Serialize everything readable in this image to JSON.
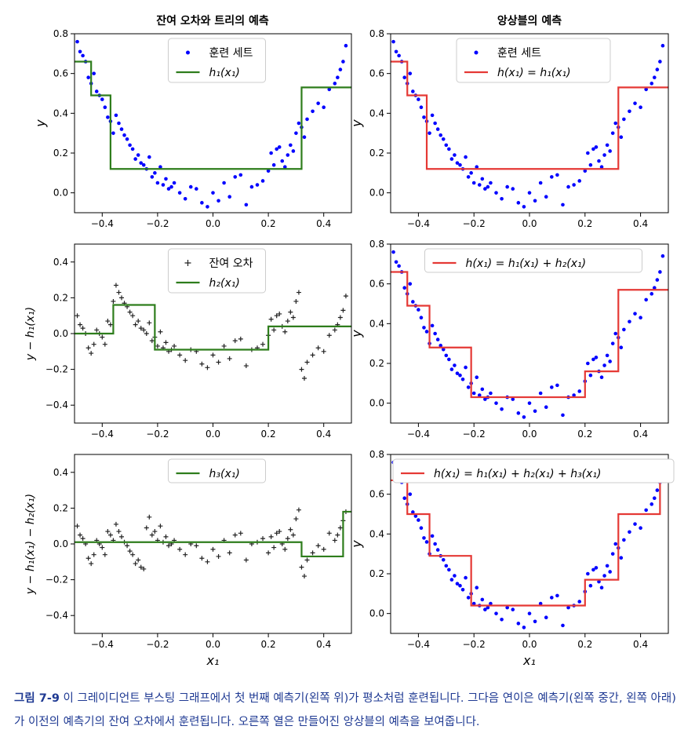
{
  "figure": {
    "col_titles": [
      "잔여 오차와 트리의 예측",
      "앙상블의 예측"
    ]
  },
  "caption": {
    "label": "그림 7-9",
    "text": "이 그레이디언트 부스팅 그래프에서 첫 번째 예측기(왼쪽 위)가 평소처럼 훈련됩니다. 그다음 연이은 예측기(왼쪽 중간, 왼쪽 아래)가 이전의 예측기의 잔여 오차에서 훈련됩니다. 오른쪽 열은 만들어진 앙상블의 예측을 보여줍니다."
  },
  "chart_data": [
    {
      "type": "scatter",
      "panel": "left-top",
      "title": "잔여 오차와 트리의 예측",
      "xlabel": "",
      "ylabel": "y",
      "xlim": [
        -0.5,
        0.5
      ],
      "ylim": [
        -0.1,
        0.8
      ],
      "xticks": [
        "−0.4",
        "−0.2",
        "0.0",
        "0.2",
        "0.4"
      ],
      "yticks": [
        "0.0",
        "0.2",
        "0.4",
        "0.6",
        "0.8"
      ],
      "legend": [
        "훈련 세트",
        "h₁(x₁)"
      ],
      "legend_position": "upper-center",
      "marker": "dot",
      "marker_color": "#0000ff",
      "line_color": "#2e7d1c",
      "points_x": [
        -0.49,
        -0.48,
        -0.47,
        -0.46,
        -0.45,
        -0.44,
        -0.43,
        -0.42,
        -0.41,
        -0.4,
        -0.39,
        -0.38,
        -0.37,
        -0.36,
        -0.35,
        -0.34,
        -0.33,
        -0.32,
        -0.31,
        -0.3,
        -0.29,
        -0.28,
        -0.27,
        -0.26,
        -0.25,
        -0.24,
        -0.23,
        -0.22,
        -0.21,
        -0.2,
        -0.19,
        -0.18,
        -0.17,
        -0.16,
        -0.15,
        -0.14,
        -0.12,
        -0.1,
        -0.08,
        -0.06,
        -0.04,
        -0.02,
        0.0,
        0.02,
        0.04,
        0.06,
        0.08,
        0.1,
        0.12,
        0.14,
        0.16,
        0.18,
        0.2,
        0.21,
        0.22,
        0.23,
        0.24,
        0.25,
        0.26,
        0.27,
        0.28,
        0.29,
        0.3,
        0.31,
        0.32,
        0.33,
        0.34,
        0.36,
        0.38,
        0.4,
        0.42,
        0.44,
        0.45,
        0.46,
        0.47,
        0.48
      ],
      "points_y": [
        0.76,
        0.71,
        0.69,
        0.66,
        0.58,
        0.55,
        0.6,
        0.51,
        0.49,
        0.47,
        0.43,
        0.38,
        0.36,
        0.3,
        0.39,
        0.35,
        0.32,
        0.29,
        0.27,
        0.24,
        0.22,
        0.17,
        0.19,
        0.15,
        0.14,
        0.12,
        0.18,
        0.08,
        0.1,
        0.05,
        0.13,
        0.04,
        0.07,
        0.02,
        0.03,
        0.05,
        0.0,
        -0.03,
        0.03,
        0.02,
        -0.05,
        -0.07,
        0.0,
        -0.04,
        0.05,
        -0.02,
        0.08,
        0.09,
        -0.06,
        0.03,
        0.04,
        0.06,
        0.11,
        0.2,
        0.14,
        0.22,
        0.23,
        0.16,
        0.13,
        0.19,
        0.24,
        0.21,
        0.3,
        0.35,
        0.33,
        0.28,
        0.37,
        0.41,
        0.45,
        0.43,
        0.52,
        0.55,
        0.58,
        0.62,
        0.66,
        0.74
      ],
      "steps": [
        [
          -0.5,
          0.66
        ],
        [
          -0.44,
          0.49
        ],
        [
          -0.37,
          0.12
        ],
        [
          0.32,
          0.53
        ],
        [
          0.5,
          0.53
        ]
      ]
    },
    {
      "type": "scatter",
      "panel": "left-middle",
      "title": "",
      "xlabel": "",
      "ylabel": "y − h₁(x₁)",
      "xlim": [
        -0.5,
        0.5
      ],
      "ylim": [
        -0.5,
        0.5
      ],
      "xticks": [
        "−0.4",
        "−0.2",
        "0.0",
        "0.2",
        "0.4"
      ],
      "yticks": [
        "−0.4",
        "−0.2",
        "0.0",
        "0.2",
        "0.4"
      ],
      "legend": [
        "잔여 오차",
        "h₂(x₁)"
      ],
      "legend_position": "upper-center",
      "marker": "plus",
      "marker_color": "#222222",
      "line_color": "#2e7d1c",
      "points_x": [
        -0.49,
        -0.48,
        -0.47,
        -0.46,
        -0.45,
        -0.44,
        -0.43,
        -0.42,
        -0.41,
        -0.4,
        -0.39,
        -0.38,
        -0.37,
        -0.36,
        -0.35,
        -0.34,
        -0.33,
        -0.32,
        -0.31,
        -0.3,
        -0.29,
        -0.28,
        -0.27,
        -0.26,
        -0.25,
        -0.24,
        -0.23,
        -0.22,
        -0.21,
        -0.2,
        -0.19,
        -0.18,
        -0.17,
        -0.16,
        -0.15,
        -0.14,
        -0.12,
        -0.1,
        -0.08,
        -0.06,
        -0.04,
        -0.02,
        0.0,
        0.02,
        0.04,
        0.06,
        0.08,
        0.1,
        0.12,
        0.14,
        0.16,
        0.18,
        0.2,
        0.21,
        0.22,
        0.23,
        0.24,
        0.25,
        0.26,
        0.27,
        0.28,
        0.29,
        0.3,
        0.31,
        0.32,
        0.33,
        0.34,
        0.36,
        0.38,
        0.4,
        0.42,
        0.44,
        0.45,
        0.46,
        0.47,
        0.48
      ],
      "points_y": [
        0.1,
        0.05,
        0.03,
        0.0,
        -0.08,
        -0.11,
        -0.06,
        0.02,
        0.0,
        -0.02,
        -0.06,
        0.07,
        0.05,
        0.18,
        0.27,
        0.23,
        0.2,
        0.17,
        0.15,
        0.12,
        0.1,
        0.05,
        0.07,
        0.03,
        0.02,
        0.0,
        0.06,
        -0.04,
        -0.02,
        -0.07,
        0.01,
        -0.08,
        -0.05,
        -0.1,
        -0.09,
        -0.07,
        -0.12,
        -0.15,
        -0.09,
        -0.1,
        -0.17,
        -0.19,
        -0.12,
        -0.16,
        -0.07,
        -0.14,
        -0.04,
        -0.03,
        -0.18,
        -0.09,
        -0.08,
        -0.06,
        -0.01,
        0.08,
        0.02,
        0.1,
        0.11,
        0.04,
        0.01,
        0.07,
        0.12,
        0.09,
        0.18,
        0.23,
        -0.2,
        -0.25,
        -0.16,
        -0.12,
        -0.08,
        -0.1,
        -0.01,
        0.02,
        0.05,
        0.09,
        0.13,
        0.21
      ],
      "steps": [
        [
          -0.5,
          0.0
        ],
        [
          -0.36,
          0.16
        ],
        [
          -0.21,
          -0.09
        ],
        [
          0.2,
          0.04
        ],
        [
          0.5,
          0.04
        ]
      ]
    },
    {
      "type": "scatter",
      "panel": "left-bottom",
      "title": "",
      "xlabel": "x₁",
      "ylabel": "y − h₁(x₁) − h₂(x₁)",
      "xlim": [
        -0.5,
        0.5
      ],
      "ylim": [
        -0.5,
        0.5
      ],
      "xticks": [
        "−0.4",
        "−0.2",
        "0.0",
        "0.2",
        "0.4"
      ],
      "yticks": [
        "−0.4",
        "−0.2",
        "0.0",
        "0.2",
        "0.4"
      ],
      "legend": [
        "h₃(x₁)"
      ],
      "legend_position": "upper-center",
      "marker": "plus",
      "marker_color": "#222222",
      "line_color": "#2e7d1c",
      "points_x": [
        -0.49,
        -0.48,
        -0.47,
        -0.46,
        -0.45,
        -0.44,
        -0.43,
        -0.42,
        -0.41,
        -0.4,
        -0.39,
        -0.38,
        -0.37,
        -0.36,
        -0.35,
        -0.34,
        -0.33,
        -0.32,
        -0.31,
        -0.3,
        -0.29,
        -0.28,
        -0.27,
        -0.26,
        -0.25,
        -0.24,
        -0.23,
        -0.22,
        -0.21,
        -0.2,
        -0.19,
        -0.18,
        -0.17,
        -0.16,
        -0.15,
        -0.14,
        -0.12,
        -0.1,
        -0.08,
        -0.06,
        -0.04,
        -0.02,
        0.0,
        0.02,
        0.04,
        0.06,
        0.08,
        0.1,
        0.12,
        0.14,
        0.16,
        0.18,
        0.2,
        0.21,
        0.22,
        0.23,
        0.24,
        0.25,
        0.26,
        0.27,
        0.28,
        0.29,
        0.3,
        0.31,
        0.32,
        0.33,
        0.34,
        0.36,
        0.38,
        0.4,
        0.42,
        0.44,
        0.45,
        0.46,
        0.47,
        0.48
      ],
      "points_y": [
        0.1,
        0.05,
        0.03,
        0.0,
        -0.08,
        -0.11,
        -0.06,
        0.02,
        0.0,
        -0.02,
        -0.06,
        0.07,
        0.05,
        0.02,
        0.11,
        0.07,
        0.04,
        0.01,
        -0.01,
        -0.04,
        -0.06,
        -0.11,
        -0.09,
        -0.13,
        -0.14,
        0.09,
        0.15,
        0.05,
        0.07,
        0.02,
        0.1,
        0.01,
        0.04,
        -0.01,
        0.0,
        0.02,
        -0.03,
        -0.06,
        0.0,
        -0.01,
        -0.08,
        -0.1,
        -0.03,
        -0.07,
        0.02,
        -0.05,
        0.05,
        0.06,
        -0.09,
        0.0,
        0.01,
        0.03,
        -0.05,
        0.04,
        -0.02,
        0.06,
        0.07,
        0.0,
        -0.03,
        0.03,
        0.08,
        0.05,
        0.14,
        0.19,
        -0.13,
        -0.18,
        -0.09,
        -0.05,
        -0.01,
        -0.03,
        0.06,
        0.02,
        0.05,
        0.09,
        0.13,
        0.18
      ],
      "steps": [
        [
          -0.5,
          0.01
        ],
        [
          0.32,
          -0.07
        ],
        [
          0.47,
          0.18
        ],
        [
          0.5,
          0.18
        ]
      ]
    },
    {
      "type": "scatter",
      "panel": "right-top",
      "title": "앙상블의 예측",
      "xlabel": "",
      "ylabel": "y",
      "xlim": [
        -0.5,
        0.5
      ],
      "ylim": [
        -0.1,
        0.8
      ],
      "xticks": [
        "−0.4",
        "−0.2",
        "0.0",
        "0.2",
        "0.4"
      ],
      "yticks": [
        "0.0",
        "0.2",
        "0.4",
        "0.6",
        "0.8"
      ],
      "legend": [
        "훈련 세트",
        "h(x₁) = h₁(x₁)"
      ],
      "legend_position": "upper-center",
      "marker": "dot",
      "marker_color": "#0000ff",
      "line_color": "#e53935",
      "points_x": [
        -0.49,
        -0.48,
        -0.47,
        -0.46,
        -0.45,
        -0.44,
        -0.43,
        -0.42,
        -0.41,
        -0.4,
        -0.39,
        -0.38,
        -0.37,
        -0.36,
        -0.35,
        -0.34,
        -0.33,
        -0.32,
        -0.31,
        -0.3,
        -0.29,
        -0.28,
        -0.27,
        -0.26,
        -0.25,
        -0.24,
        -0.23,
        -0.22,
        -0.21,
        -0.2,
        -0.19,
        -0.18,
        -0.17,
        -0.16,
        -0.15,
        -0.14,
        -0.12,
        -0.1,
        -0.08,
        -0.06,
        -0.04,
        -0.02,
        0.0,
        0.02,
        0.04,
        0.06,
        0.08,
        0.1,
        0.12,
        0.14,
        0.16,
        0.18,
        0.2,
        0.21,
        0.22,
        0.23,
        0.24,
        0.25,
        0.26,
        0.27,
        0.28,
        0.29,
        0.3,
        0.31,
        0.32,
        0.33,
        0.34,
        0.36,
        0.38,
        0.4,
        0.42,
        0.44,
        0.45,
        0.46,
        0.47,
        0.48
      ],
      "points_y": [
        0.76,
        0.71,
        0.69,
        0.66,
        0.58,
        0.55,
        0.6,
        0.51,
        0.49,
        0.47,
        0.43,
        0.38,
        0.36,
        0.3,
        0.39,
        0.35,
        0.32,
        0.29,
        0.27,
        0.24,
        0.22,
        0.17,
        0.19,
        0.15,
        0.14,
        0.12,
        0.18,
        0.08,
        0.1,
        0.05,
        0.13,
        0.04,
        0.07,
        0.02,
        0.03,
        0.05,
        0.0,
        -0.03,
        0.03,
        0.02,
        -0.05,
        -0.07,
        0.0,
        -0.04,
        0.05,
        -0.02,
        0.08,
        0.09,
        -0.06,
        0.03,
        0.04,
        0.06,
        0.11,
        0.2,
        0.14,
        0.22,
        0.23,
        0.16,
        0.13,
        0.19,
        0.24,
        0.21,
        0.3,
        0.35,
        0.33,
        0.28,
        0.37,
        0.41,
        0.45,
        0.43,
        0.52,
        0.55,
        0.58,
        0.62,
        0.66,
        0.74
      ],
      "steps": [
        [
          -0.5,
          0.66
        ],
        [
          -0.44,
          0.49
        ],
        [
          -0.37,
          0.12
        ],
        [
          0.32,
          0.53
        ],
        [
          0.5,
          0.53
        ]
      ]
    },
    {
      "type": "scatter",
      "panel": "right-middle",
      "title": "",
      "xlabel": "",
      "ylabel": "y",
      "xlim": [
        -0.5,
        0.5
      ],
      "ylim": [
        -0.1,
        0.8
      ],
      "xticks": [
        "−0.4",
        "−0.2",
        "0.0",
        "0.2",
        "0.4"
      ],
      "yticks": [
        "0.0",
        "0.2",
        "0.4",
        "0.6",
        "0.8"
      ],
      "legend": [
        "h(x₁) = h₁(x₁) + h₂(x₁)"
      ],
      "legend_position": "upper-center",
      "marker": "dot",
      "marker_color": "#0000ff",
      "line_color": "#e53935",
      "points_x": [
        -0.49,
        -0.48,
        -0.47,
        -0.46,
        -0.45,
        -0.44,
        -0.43,
        -0.42,
        -0.41,
        -0.4,
        -0.39,
        -0.38,
        -0.37,
        -0.36,
        -0.35,
        -0.34,
        -0.33,
        -0.32,
        -0.31,
        -0.3,
        -0.29,
        -0.28,
        -0.27,
        -0.26,
        -0.25,
        -0.24,
        -0.23,
        -0.22,
        -0.21,
        -0.2,
        -0.19,
        -0.18,
        -0.17,
        -0.16,
        -0.15,
        -0.14,
        -0.12,
        -0.1,
        -0.08,
        -0.06,
        -0.04,
        -0.02,
        0.0,
        0.02,
        0.04,
        0.06,
        0.08,
        0.1,
        0.12,
        0.14,
        0.16,
        0.18,
        0.2,
        0.21,
        0.22,
        0.23,
        0.24,
        0.25,
        0.26,
        0.27,
        0.28,
        0.29,
        0.3,
        0.31,
        0.32,
        0.33,
        0.34,
        0.36,
        0.38,
        0.4,
        0.42,
        0.44,
        0.45,
        0.46,
        0.47,
        0.48
      ],
      "points_y": [
        0.76,
        0.71,
        0.69,
        0.66,
        0.58,
        0.55,
        0.6,
        0.51,
        0.49,
        0.47,
        0.43,
        0.38,
        0.36,
        0.3,
        0.39,
        0.35,
        0.32,
        0.29,
        0.27,
        0.24,
        0.22,
        0.17,
        0.19,
        0.15,
        0.14,
        0.12,
        0.18,
        0.08,
        0.1,
        0.05,
        0.13,
        0.04,
        0.07,
        0.02,
        0.03,
        0.05,
        0.0,
        -0.03,
        0.03,
        0.02,
        -0.05,
        -0.07,
        0.0,
        -0.04,
        0.05,
        -0.02,
        0.08,
        0.09,
        -0.06,
        0.03,
        0.04,
        0.06,
        0.11,
        0.2,
        0.14,
        0.22,
        0.23,
        0.16,
        0.13,
        0.19,
        0.24,
        0.21,
        0.3,
        0.35,
        0.33,
        0.28,
        0.37,
        0.41,
        0.45,
        0.43,
        0.52,
        0.55,
        0.58,
        0.62,
        0.66,
        0.74
      ],
      "steps": [
        [
          -0.5,
          0.66
        ],
        [
          -0.44,
          0.49
        ],
        [
          -0.36,
          0.28
        ],
        [
          -0.21,
          0.03
        ],
        [
          0.2,
          0.16
        ],
        [
          0.32,
          0.57
        ],
        [
          0.5,
          0.57
        ]
      ]
    },
    {
      "type": "scatter",
      "panel": "right-bottom",
      "title": "",
      "xlabel": "x₁",
      "ylabel": "y",
      "xlim": [
        -0.5,
        0.5
      ],
      "ylim": [
        -0.1,
        0.8
      ],
      "xticks": [
        "−0.4",
        "−0.2",
        "0.0",
        "0.2",
        "0.4"
      ],
      "yticks": [
        "0.0",
        "0.2",
        "0.4",
        "0.6",
        "0.8"
      ],
      "legend": [
        "h(x₁) = h₁(x₁) + h₂(x₁) + h₃(x₁)"
      ],
      "legend_position": "upper-center",
      "marker": "dot",
      "marker_color": "#0000ff",
      "line_color": "#e53935",
      "points_x": [
        -0.49,
        -0.48,
        -0.47,
        -0.46,
        -0.45,
        -0.44,
        -0.43,
        -0.42,
        -0.41,
        -0.4,
        -0.39,
        -0.38,
        -0.37,
        -0.36,
        -0.35,
        -0.34,
        -0.33,
        -0.32,
        -0.31,
        -0.3,
        -0.29,
        -0.28,
        -0.27,
        -0.26,
        -0.25,
        -0.24,
        -0.23,
        -0.22,
        -0.21,
        -0.2,
        -0.19,
        -0.18,
        -0.17,
        -0.16,
        -0.15,
        -0.14,
        -0.12,
        -0.1,
        -0.08,
        -0.06,
        -0.04,
        -0.02,
        0.0,
        0.02,
        0.04,
        0.06,
        0.08,
        0.1,
        0.12,
        0.14,
        0.16,
        0.18,
        0.2,
        0.21,
        0.22,
        0.23,
        0.24,
        0.25,
        0.26,
        0.27,
        0.28,
        0.29,
        0.3,
        0.31,
        0.32,
        0.33,
        0.34,
        0.36,
        0.38,
        0.4,
        0.42,
        0.44,
        0.45,
        0.46,
        0.47,
        0.48
      ],
      "points_y": [
        0.76,
        0.71,
        0.69,
        0.66,
        0.58,
        0.55,
        0.6,
        0.51,
        0.49,
        0.47,
        0.43,
        0.38,
        0.36,
        0.3,
        0.39,
        0.35,
        0.32,
        0.29,
        0.27,
        0.24,
        0.22,
        0.17,
        0.19,
        0.15,
        0.14,
        0.12,
        0.18,
        0.08,
        0.1,
        0.05,
        0.13,
        0.04,
        0.07,
        0.02,
        0.03,
        0.05,
        0.0,
        -0.03,
        0.03,
        0.02,
        -0.05,
        -0.07,
        0.0,
        -0.04,
        0.05,
        -0.02,
        0.08,
        0.09,
        -0.06,
        0.03,
        0.04,
        0.06,
        0.11,
        0.2,
        0.14,
        0.22,
        0.23,
        0.16,
        0.13,
        0.19,
        0.24,
        0.21,
        0.3,
        0.35,
        0.33,
        0.28,
        0.37,
        0.41,
        0.45,
        0.43,
        0.52,
        0.55,
        0.58,
        0.62,
        0.66,
        0.74
      ],
      "steps": [
        [
          -0.5,
          0.67
        ],
        [
          -0.44,
          0.5
        ],
        [
          -0.36,
          0.29
        ],
        [
          -0.21,
          0.04
        ],
        [
          0.2,
          0.17
        ],
        [
          0.32,
          0.5
        ],
        [
          0.47,
          0.75
        ],
        [
          0.5,
          0.75
        ]
      ]
    }
  ]
}
